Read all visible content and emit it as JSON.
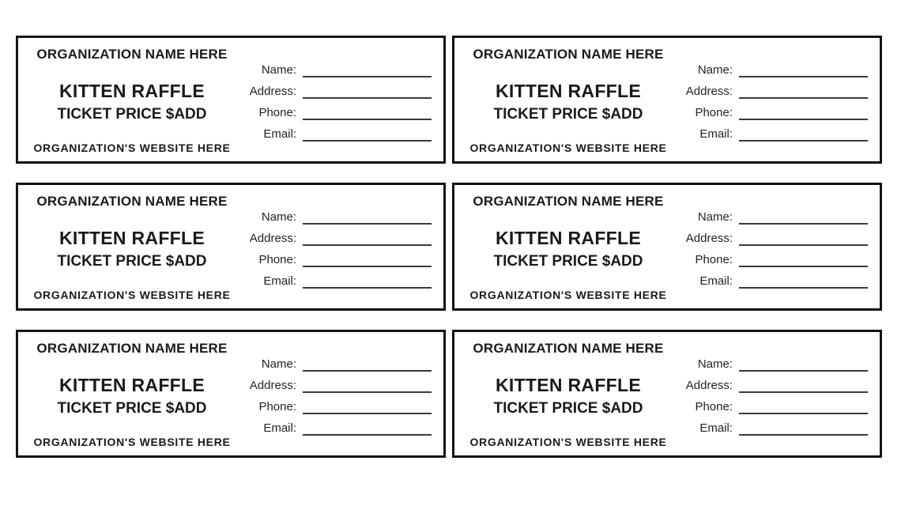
{
  "ticket_count": 6,
  "ticket": {
    "org_name": "ORGANIZATION NAME HERE",
    "title": "KITTEN RAFFLE",
    "price": "TICKET PRICE $ADD",
    "website": "ORGANIZATION'S WEBSITE HERE",
    "fields": [
      {
        "label": "Name:"
      },
      {
        "label": "Address:"
      },
      {
        "label": "Phone:"
      },
      {
        "label": "Email:"
      }
    ]
  },
  "colors": {
    "text": "#1a1a1a",
    "border": "#141414",
    "line": "#3a3a3a",
    "background": "#ffffff"
  }
}
